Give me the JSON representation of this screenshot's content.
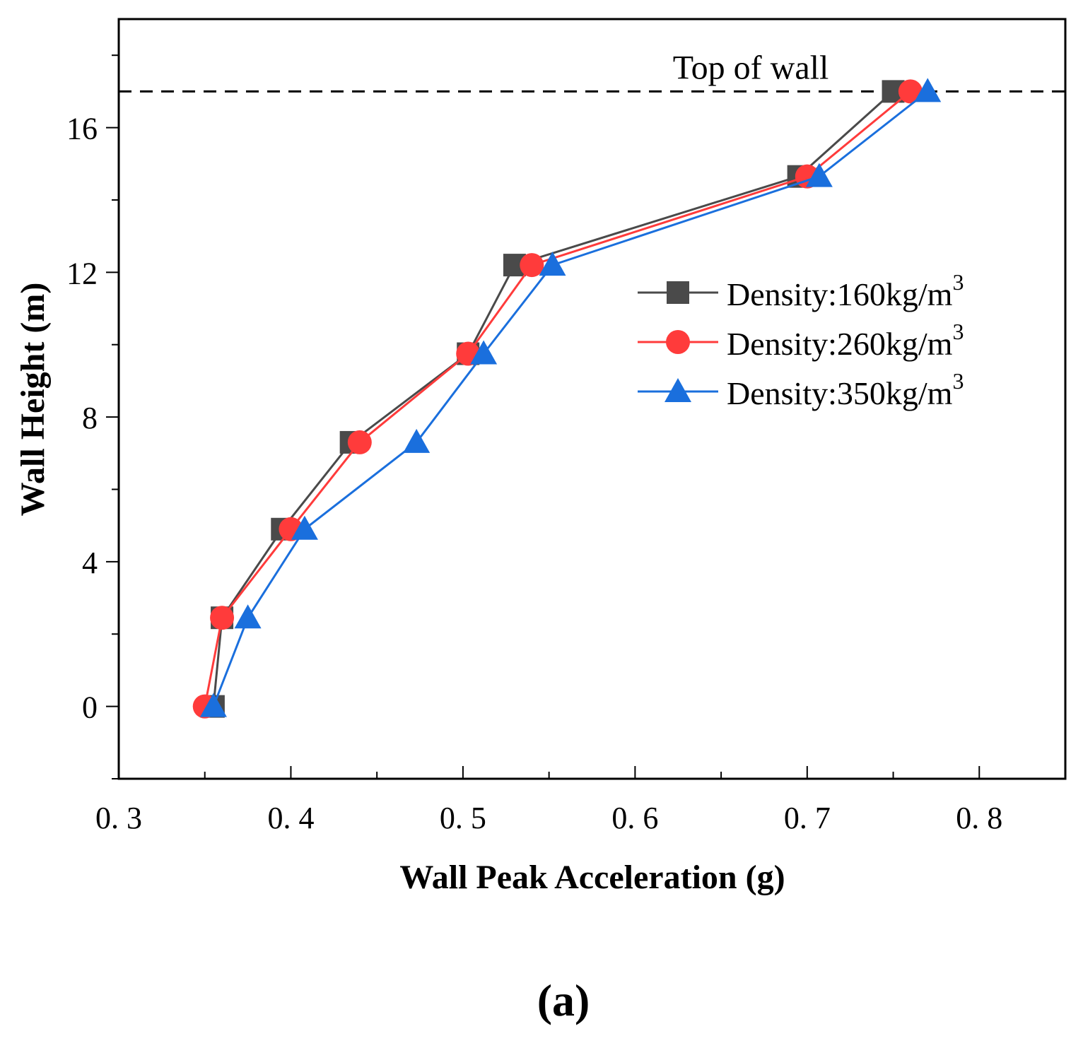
{
  "chart_data": {
    "type": "line",
    "xlabel": "Wall Peak Acceleration (g)",
    "ylabel": "Wall Height (m)",
    "xlim": [
      0.3,
      0.85
    ],
    "ylim": [
      -2,
      19
    ],
    "xticks": [
      0.3,
      0.4,
      0.5,
      0.6,
      0.7,
      0.8
    ],
    "xtick_labels": [
      "0. 3",
      "0. 4",
      "0. 5",
      "0. 6",
      "0. 7",
      "0. 8"
    ],
    "yticks": [
      0,
      4,
      8,
      12,
      16
    ],
    "ytick_labels": [
      "0",
      "4",
      "8",
      "12",
      "16"
    ],
    "reference_line": {
      "y": 17,
      "label": "Top of wall",
      "style": "dashed"
    },
    "legend_position": "center-right",
    "series": [
      {
        "name": "Density:160kg/m",
        "name_sup": "3",
        "color": "#4a4a4a",
        "marker": "square",
        "x": [
          0.355,
          0.36,
          0.395,
          0.435,
          0.503,
          0.53,
          0.695,
          0.75
        ],
        "y": [
          0,
          2.45,
          4.9,
          7.3,
          9.75,
          12.2,
          14.65,
          17
        ]
      },
      {
        "name": "Density:260kg/m",
        "name_sup": "3",
        "color": "#ff3b3b",
        "marker": "circle",
        "x": [
          0.35,
          0.36,
          0.4,
          0.44,
          0.503,
          0.54,
          0.7,
          0.76
        ],
        "y": [
          0,
          2.45,
          4.9,
          7.3,
          9.75,
          12.2,
          14.65,
          17
        ]
      },
      {
        "name": "Density:350kg/m",
        "name_sup": "3",
        "color": "#1a6fdd",
        "marker": "triangle",
        "x": [
          0.355,
          0.375,
          0.408,
          0.473,
          0.512,
          0.552,
          0.707,
          0.77
        ],
        "y": [
          0,
          2.45,
          4.9,
          7.3,
          9.75,
          12.2,
          14.65,
          17
        ]
      }
    ]
  },
  "caption": "(a)"
}
